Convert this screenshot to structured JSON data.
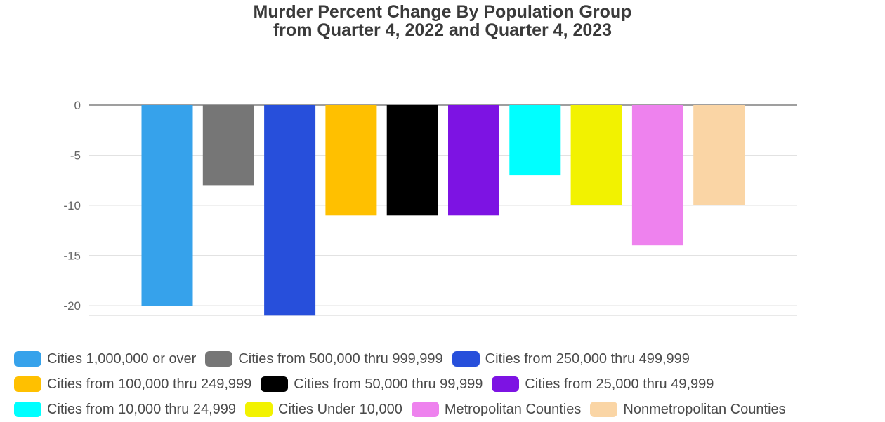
{
  "chart_data": {
    "type": "bar",
    "title": [
      "Murder Percent Change By Population Group",
      "from Quarter 4, 2022 and Quarter 4, 2023"
    ],
    "xlabel": "",
    "ylabel": "",
    "ylim": [
      -21,
      0
    ],
    "yticks": [
      0,
      -5,
      -10,
      -15,
      -20
    ],
    "grid": true,
    "legend_position": "bottom",
    "series": [
      {
        "name": "Cities 1,000,000 or over",
        "value": -20,
        "color": "#36A2EB"
      },
      {
        "name": "Cities from 500,000 thru 999,999",
        "value": -8,
        "color": "#767676"
      },
      {
        "name": "Cities from 250,000 thru 499,999",
        "value": -21,
        "color": "#274FDB"
      },
      {
        "name": "Cities from 100,000 thru 249,999",
        "value": -11,
        "color": "#FFC000"
      },
      {
        "name": "Cities from 50,000 thru 99,999",
        "value": -11,
        "color": "#000000"
      },
      {
        "name": "Cities from 25,000 thru 49,999",
        "value": -11,
        "color": "#7D13E3"
      },
      {
        "name": "Cities from 10,000 thru 24,999",
        "value": -7,
        "color": "#00FFFF"
      },
      {
        "name": "Cities Under 10,000",
        "value": -10,
        "color": "#F2F200"
      },
      {
        "name": "Metropolitan Counties",
        "value": -14,
        "color": "#EE82EE"
      },
      {
        "name": "Nonmetropolitan Counties",
        "value": -10,
        "color": "#FAD5A5"
      }
    ]
  }
}
